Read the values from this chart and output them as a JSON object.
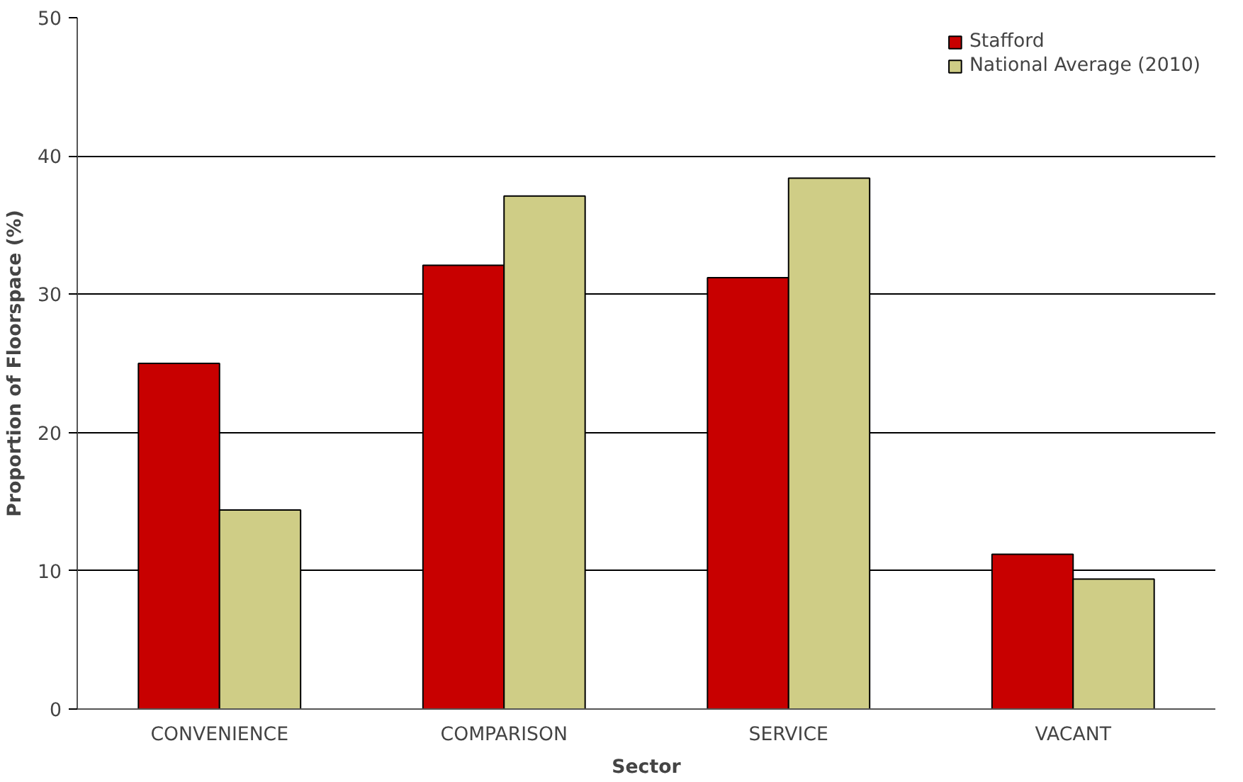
{
  "chart_data": {
    "type": "bar",
    "xlabel": "Sector",
    "ylabel": "Proportion of Floorspace (%)",
    "categories": [
      "CONVENIENCE",
      "COMPARISON",
      "SERVICE",
      "VACANT"
    ],
    "series": [
      {
        "name": "Stafford",
        "color": "#c80000",
        "values": [
          25.0,
          32.1,
          31.2,
          11.2
        ]
      },
      {
        "name": "National Average (2010)",
        "color": "#cfcd86",
        "values": [
          14.4,
          37.1,
          38.4,
          9.4
        ]
      }
    ],
    "ylim": [
      0,
      50
    ],
    "yticks": [
      0,
      10,
      20,
      30,
      40,
      50
    ],
    "grid": "y",
    "legend": "top right"
  }
}
